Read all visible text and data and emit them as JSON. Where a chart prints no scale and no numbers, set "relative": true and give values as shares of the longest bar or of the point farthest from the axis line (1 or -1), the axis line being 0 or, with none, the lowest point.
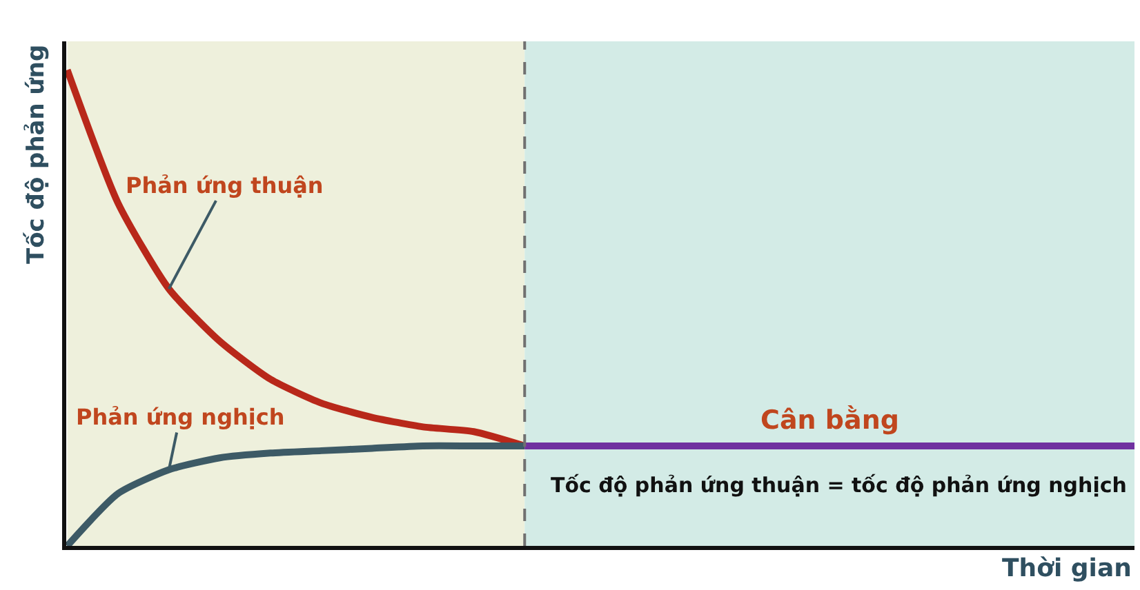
{
  "chart_data": {
    "type": "line",
    "relative": true,
    "xlabel": "Thời gian",
    "ylabel": "Tốc độ phản ứng",
    "categories": [
      null,
      null,
      null,
      null,
      null,
      null,
      null,
      null,
      null,
      null,
      null,
      null,
      null,
      null,
      null,
      null,
      null,
      null,
      null,
      null,
      null,
      null
    ],
    "series": [
      {
        "name": "Phản ứng thuận",
        "color": "#b8281a",
        "values": [
          1.0,
          0.72,
          0.54,
          0.43,
          0.35,
          0.3,
          0.27,
          0.25,
          0.24,
          0.21,
          null,
          null,
          null,
          null,
          null,
          null,
          null,
          null,
          null,
          null,
          null,
          null
        ]
      },
      {
        "name": "Phản ứng nghịch",
        "color": "#3d5a66",
        "values": [
          0.0,
          0.11,
          0.16,
          0.185,
          0.195,
          0.2,
          0.205,
          0.21,
          0.21,
          0.21,
          null,
          null,
          null,
          null,
          null,
          null,
          null,
          null,
          null,
          null,
          null,
          null
        ]
      },
      {
        "name": "Cân bằng",
        "color": "#7030a0",
        "values": [
          null,
          null,
          null,
          null,
          null,
          null,
          null,
          null,
          null,
          0.21,
          0.21,
          0.21,
          0.21,
          0.21,
          0.21,
          0.21,
          0.21,
          0.21,
          0.21,
          0.21,
          0.21,
          0.21
        ]
      }
    ],
    "annotations": [
      "Tốc độ phản ứng thuận = tốc độ phản ứng nghịch"
    ],
    "grid": false,
    "legend": false,
    "marker": "none",
    "line_style": "solid"
  }
}
